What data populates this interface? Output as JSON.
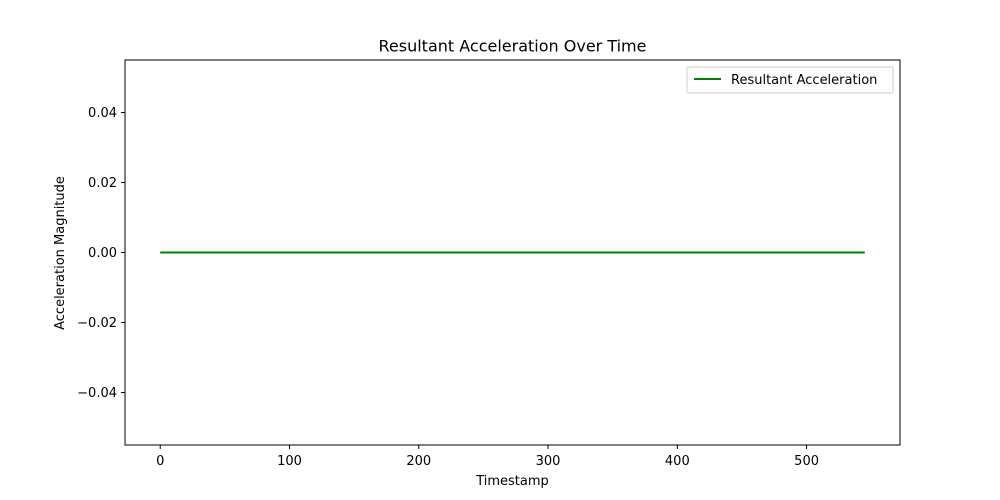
{
  "chart_data": {
    "type": "line",
    "title": "Resultant Acceleration Over Time",
    "xlabel": "Timestamp",
    "ylabel": "Acceleration Magnitude",
    "xlim": [
      -27.25,
      572.25
    ],
    "ylim": [
      -0.055,
      0.055
    ],
    "xticks": [
      0,
      100,
      200,
      300,
      400,
      500
    ],
    "xtick_labels": [
      "0",
      "100",
      "200",
      "300",
      "400",
      "500"
    ],
    "yticks": [
      -0.04,
      -0.02,
      0.0,
      0.02,
      0.04
    ],
    "ytick_labels": [
      "−0.04",
      "−0.02",
      "0.00",
      "0.02",
      "0.04"
    ],
    "grid": false,
    "legend_position": "top-right",
    "series": [
      {
        "name": "Resultant Acceleration",
        "color": "#008000",
        "x": [
          0,
          545
        ],
        "y": [
          0.0,
          0.0
        ]
      }
    ]
  }
}
